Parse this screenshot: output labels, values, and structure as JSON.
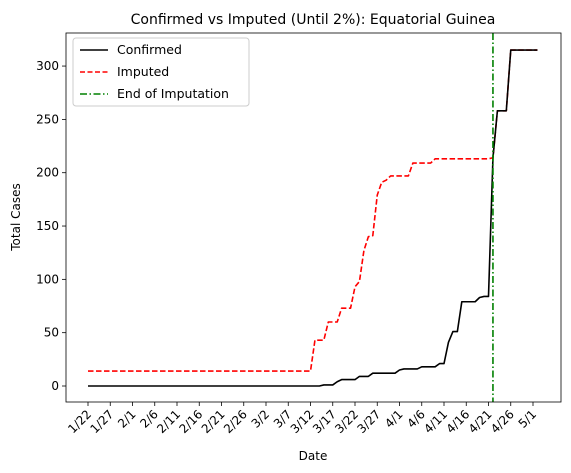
{
  "chart_data": {
    "type": "line",
    "title": "Confirmed vs Imputed (Until 2%): Equatorial Guinea",
    "xlabel": "Date",
    "ylabel": "Total Cases",
    "x_tick_labels": [
      "1/22",
      "1/27",
      "2/1",
      "2/6",
      "2/11",
      "2/16",
      "2/21",
      "2/26",
      "3/2",
      "3/7",
      "3/12",
      "3/17",
      "3/22",
      "3/27",
      "4/1",
      "4/6",
      "4/11",
      "4/16",
      "4/21",
      "4/26",
      "5/1"
    ],
    "x_tick_rotation_deg": 45,
    "y_ticks": [
      0,
      50,
      100,
      150,
      200,
      250,
      300
    ],
    "ylim": [
      -15,
      331
    ],
    "grid": false,
    "legend_position": "upper-left",
    "series": [
      {
        "name": "Confirmed",
        "color": "#000000",
        "style": "solid",
        "points": [
          [
            "1/22",
            0
          ],
          [
            "3/14",
            0
          ],
          [
            "3/15",
            1
          ],
          [
            "3/17",
            1
          ],
          [
            "3/18",
            4
          ],
          [
            "3/19",
            6
          ],
          [
            "3/22",
            6
          ],
          [
            "3/23",
            9
          ],
          [
            "3/25",
            9
          ],
          [
            "3/26",
            12
          ],
          [
            "3/31",
            12
          ],
          [
            "4/1",
            15
          ],
          [
            "4/2",
            16
          ],
          [
            "4/4",
            16
          ],
          [
            "4/5",
            16
          ],
          [
            "4/6",
            18
          ],
          [
            "4/9",
            18
          ],
          [
            "4/10",
            21
          ],
          [
            "4/11",
            21
          ],
          [
            "4/12",
            41
          ],
          [
            "4/13",
            51
          ],
          [
            "4/14",
            51
          ],
          [
            "4/15",
            79
          ],
          [
            "4/18",
            79
          ],
          [
            "4/19",
            83
          ],
          [
            "4/20",
            84
          ],
          [
            "4/21",
            84
          ],
          [
            "4/22",
            214
          ],
          [
            "4/23",
            258
          ],
          [
            "4/25",
            258
          ],
          [
            "4/26",
            315
          ],
          [
            "5/2",
            315
          ]
        ]
      },
      {
        "name": "Imputed",
        "color": "#ff0000",
        "style": "dashed",
        "points": [
          [
            "1/22",
            14
          ],
          [
            "3/12",
            14
          ],
          [
            "3/13",
            43
          ],
          [
            "3/15",
            43
          ],
          [
            "3/16",
            60
          ],
          [
            "3/18",
            60
          ],
          [
            "3/19",
            73
          ],
          [
            "3/21",
            73
          ],
          [
            "3/22",
            93
          ],
          [
            "3/23",
            98
          ],
          [
            "3/24",
            127
          ],
          [
            "3/25",
            140
          ],
          [
            "3/26",
            141
          ],
          [
            "3/27",
            179
          ],
          [
            "3/28",
            191
          ],
          [
            "3/29",
            193
          ],
          [
            "3/30",
            197
          ],
          [
            "4/3",
            197
          ],
          [
            "4/4",
            209
          ],
          [
            "4/8",
            209
          ],
          [
            "4/9",
            213
          ],
          [
            "4/21",
            213
          ],
          [
            "4/22",
            214
          ],
          [
            "4/23",
            258
          ],
          [
            "4/25",
            258
          ],
          [
            "4/26",
            315
          ],
          [
            "5/2",
            315
          ]
        ]
      },
      {
        "name": "End of Imputation",
        "color": "#008000",
        "style": "dashdot",
        "vline_x": "4/22"
      }
    ]
  }
}
